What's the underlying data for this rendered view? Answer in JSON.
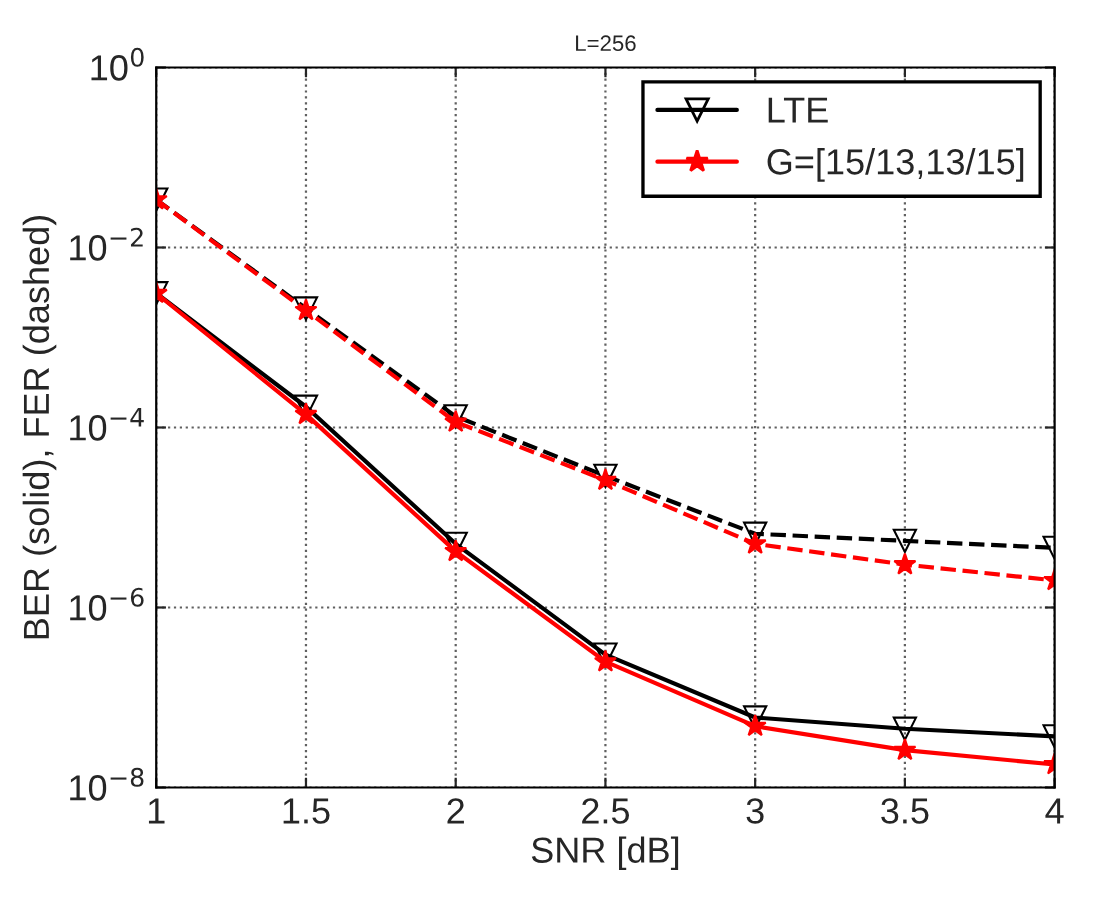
{
  "chart_data": {
    "type": "line",
    "title": "L=256",
    "xlabel": "SNR [dB]",
    "ylabel": "BER (solid), FER (dashed)",
    "x": [
      1,
      1.5,
      2,
      2.5,
      3,
      3.5,
      4
    ],
    "series": [
      {
        "name": "LTE",
        "color": "#000000",
        "marker": "triangle",
        "line_style": "solid",
        "values": [
          0.0031,
          0.00017,
          5.1e-06,
          3e-07,
          6e-08,
          4.5e-08,
          3.7e-08
        ]
      },
      {
        "name": "G=[15/13,13/15]",
        "color": "#ff0000",
        "marker": "star",
        "line_style": "solid",
        "values": [
          0.0031,
          0.00014,
          4.2e-06,
          2.5e-07,
          4.8e-08,
          2.6e-08,
          1.8e-08
        ]
      },
      {
        "color": "#000000",
        "marker": "triangle",
        "line_style": "dashed",
        "values": [
          0.034,
          0.0021,
          0.000133,
          2.9e-05,
          6.6e-06,
          5.5e-06,
          4.6e-06
        ]
      },
      {
        "color": "#ff0000",
        "marker": "star",
        "line_style": "dashed",
        "values": [
          0.034,
          0.002,
          0.000115,
          2.6e-05,
          5.1e-06,
          3e-06,
          2e-06
        ]
      }
    ],
    "log": "y",
    "xlim": [
      1,
      4
    ],
    "xticks": [
      1,
      1.5,
      2,
      2.5,
      3,
      3.5,
      4
    ],
    "ylim": [
      1e-08,
      1
    ],
    "yticks": [
      {
        "value": 1e-08,
        "label": "10$^{−8}$"
      },
      {
        "value": 1e-06,
        "label": "10$^{−6}$"
      },
      {
        "value": 0.0001,
        "label": "10$^{−4}$"
      },
      {
        "value": 0.01,
        "label": "10$^{−2}$"
      },
      {
        "value": 1,
        "label": "10$^{0}$"
      }
    ],
    "grid": true,
    "legend": "top right"
  }
}
